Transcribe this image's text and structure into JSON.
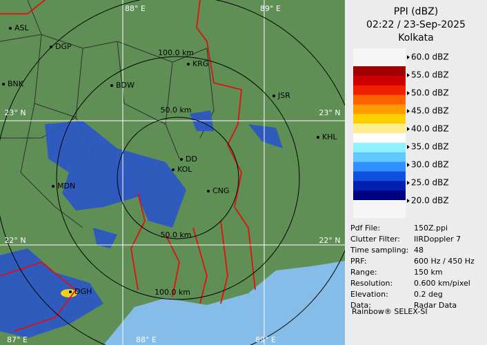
{
  "header": {
    "title": "PPI (dBZ)",
    "datetime": "02:22 / 23-Sep-2025",
    "station": "Kolkata"
  },
  "legend": [
    "60.0 dBZ",
    "55.0 dBZ",
    "50.0 dBZ",
    "45.0 dBZ",
    "40.0 dBZ",
    "35.0 dBZ",
    "30.0 dBZ",
    "25.0 dBZ",
    "20.0 dBZ"
  ],
  "info": [
    {
      "key": "Pdf File:",
      "value": "150Z.ppi"
    },
    {
      "key": "Clutter Filter:",
      "value": "IIRDoppler 7"
    },
    {
      "key": "Time sampling:",
      "value": "48"
    },
    {
      "key": "PRF:",
      "value": "600 Hz / 450 Hz"
    },
    {
      "key": "Range:",
      "value": "150 km"
    },
    {
      "key": "Resolution:",
      "value": "0.600 km/pixel"
    },
    {
      "key": "Elevation:",
      "value": "0.2 deg"
    },
    {
      "key": "Data:",
      "value": "Radar Data"
    }
  ],
  "footer": "Rainbow® SELEX-SI",
  "map": {
    "grid_labels": [
      "88° E",
      "89° E",
      "23° N",
      "23° N",
      "22° N",
      "22° N",
      "87° E",
      "88° E",
      "89° E"
    ],
    "ring_labels": [
      "100.0 km",
      "50.0 km",
      "50.0 km",
      "100.0 km"
    ],
    "cities": [
      "ASL",
      "DGP",
      "BNK",
      "BDW",
      "KRG",
      "JSR",
      "KHL",
      "DD",
      "KOL",
      "MDN",
      "CNG",
      "DGH"
    ]
  }
}
